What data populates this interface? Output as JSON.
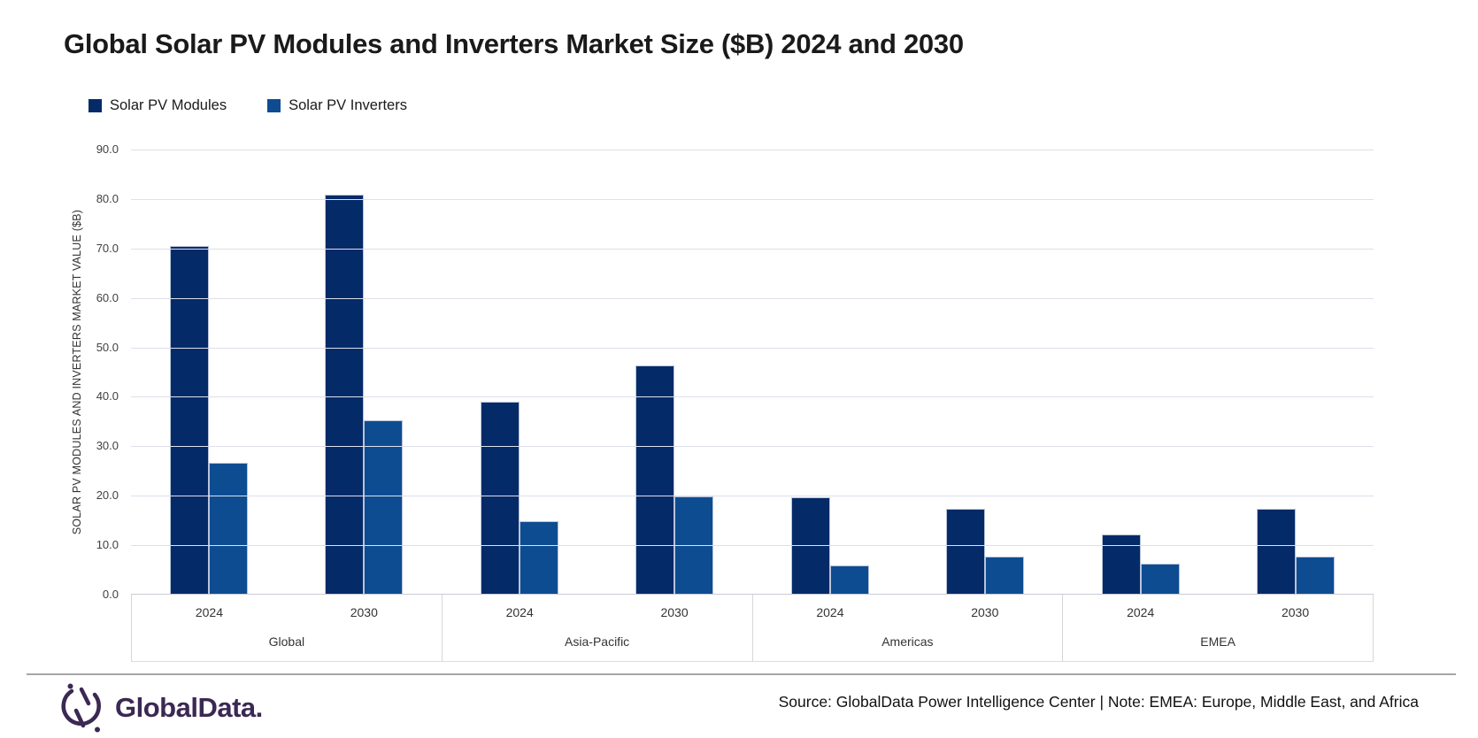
{
  "title": "Global Solar PV Modules and Inverters Market Size ($B) 2024 and 2030",
  "legend": [
    {
      "label": "Solar PV Modules",
      "color": "#052a68"
    },
    {
      "label": "Solar PV Inverters",
      "color": "#0e4c92"
    }
  ],
  "chart_data": {
    "type": "bar",
    "title": "Global Solar PV Modules and Inverters Market Size ($B) 2024 and 2030",
    "ylabel": "SOLAR PV MODULES AND INVERTERS MARKET VALUE ($B)",
    "xlabel": "",
    "ylim": [
      0,
      90
    ],
    "ytick_step": 10,
    "ytick_format_decimals": 1,
    "grid": true,
    "legend_position": "top-left",
    "categories": [
      "Global 2024",
      "Global 2030",
      "Asia-Pacific 2024",
      "Asia-Pacific 2030",
      "Americas 2024",
      "Americas 2030",
      "EMEA 2024",
      "EMEA 2030"
    ],
    "series": [
      {
        "name": "Solar PV Modules",
        "color": "#052a68",
        "values": [
          70.4,
          80.7,
          38.8,
          46.2,
          19.5,
          17.1,
          12.0,
          17.2
        ]
      },
      {
        "name": "Solar PV Inverters",
        "color": "#0e4c92",
        "values": [
          26.4,
          35.0,
          14.6,
          19.7,
          5.7,
          7.6,
          6.0,
          7.5
        ]
      }
    ],
    "groups": [
      {
        "region": "Global",
        "years": [
          {
            "year": "2024",
            "modules": 70.4,
            "inverters": 26.4
          },
          {
            "year": "2030",
            "modules": 80.7,
            "inverters": 35.0
          }
        ]
      },
      {
        "region": "Asia-Pacific",
        "years": [
          {
            "year": "2024",
            "modules": 38.8,
            "inverters": 14.6
          },
          {
            "year": "2030",
            "modules": 46.2,
            "inverters": 19.7
          }
        ]
      },
      {
        "region": "Americas",
        "years": [
          {
            "year": "2024",
            "modules": 19.5,
            "inverters": 5.7
          },
          {
            "year": "2030",
            "modules": 17.1,
            "inverters": 7.6
          }
        ]
      },
      {
        "region": "EMEA",
        "years": [
          {
            "year": "2024",
            "modules": 12.0,
            "inverters": 6.0
          },
          {
            "year": "2030",
            "modules": 17.2,
            "inverters": 7.5
          }
        ]
      }
    ]
  },
  "footer": {
    "logo_text": "GlobalData.",
    "logo_color": "#3b2853",
    "source": "Source: GlobalData Power Intelligence Center | Note: EMEA: Europe, Middle East, and Africa"
  }
}
